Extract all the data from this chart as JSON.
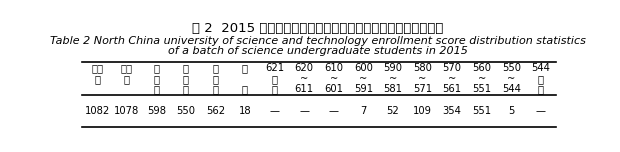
{
  "title_cn": "表 2  2015 年华北理工大学本科一批理科招生录取分数分布统计",
  "title_en1": "Table 2 North China university of science and technology enrollment score distribution statistics",
  "title_en2": "of a batch of science undergraduate students in 2015",
  "headers_line1": [
    "计划",
    "录取",
    "最",
    "最",
    "平",
    "差",
    "621",
    "620",
    "610",
    "600",
    "590",
    "580",
    "570",
    "560",
    "550",
    "544"
  ],
  "headers_line2": [
    "数",
    "数",
    "高",
    "低",
    "均",
    "",
    "以",
    "~",
    "~",
    "~",
    "~",
    "~",
    "~",
    "~",
    "~",
    "以"
  ],
  "headers_line3": [
    "",
    "",
    "分",
    "分",
    "分",
    "值",
    "上",
    "611",
    "601",
    "591",
    "581",
    "571",
    "561",
    "551",
    "544",
    "下"
  ],
  "data_row": [
    "1082",
    "1078",
    "598",
    "550",
    "562",
    "18",
    "—",
    "—",
    "—",
    "7",
    "52",
    "109",
    "354",
    "551",
    "5",
    "—"
  ],
  "background": "#ffffff",
  "font_size_cn_title": 9.5,
  "font_size_en_title": 8.0,
  "font_size_table": 7.2
}
